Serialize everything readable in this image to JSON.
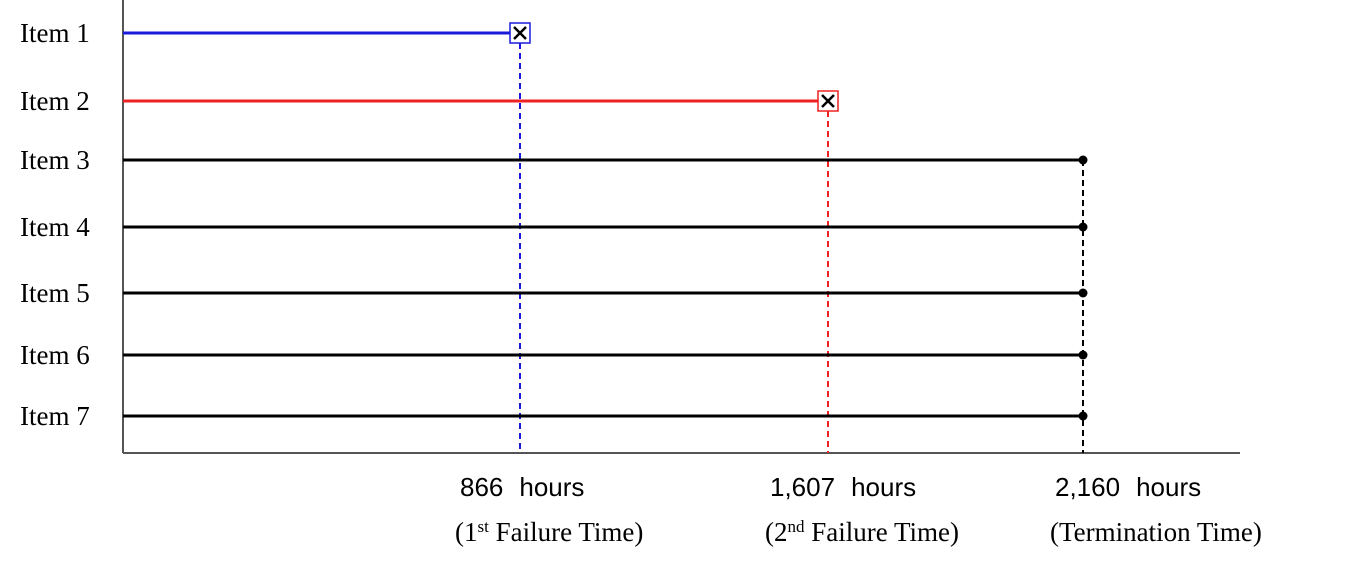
{
  "items": [
    {
      "label": "Item 1"
    },
    {
      "label": "Item 2"
    },
    {
      "label": "Item 3"
    },
    {
      "label": "Item 4"
    },
    {
      "label": "Item 5"
    },
    {
      "label": "Item 6"
    },
    {
      "label": "Item 7"
    }
  ],
  "events": [
    {
      "time": "866",
      "unit": "hours",
      "caption": [
        "(1",
        "st",
        " Failure Time)"
      ]
    },
    {
      "time": "1,607",
      "unit": "hours",
      "caption": [
        "(2",
        "nd",
        " Failure Time)"
      ]
    },
    {
      "time": "2,160",
      "unit": "hours",
      "caption": [
        "(Termination Time)"
      ]
    }
  ]
}
